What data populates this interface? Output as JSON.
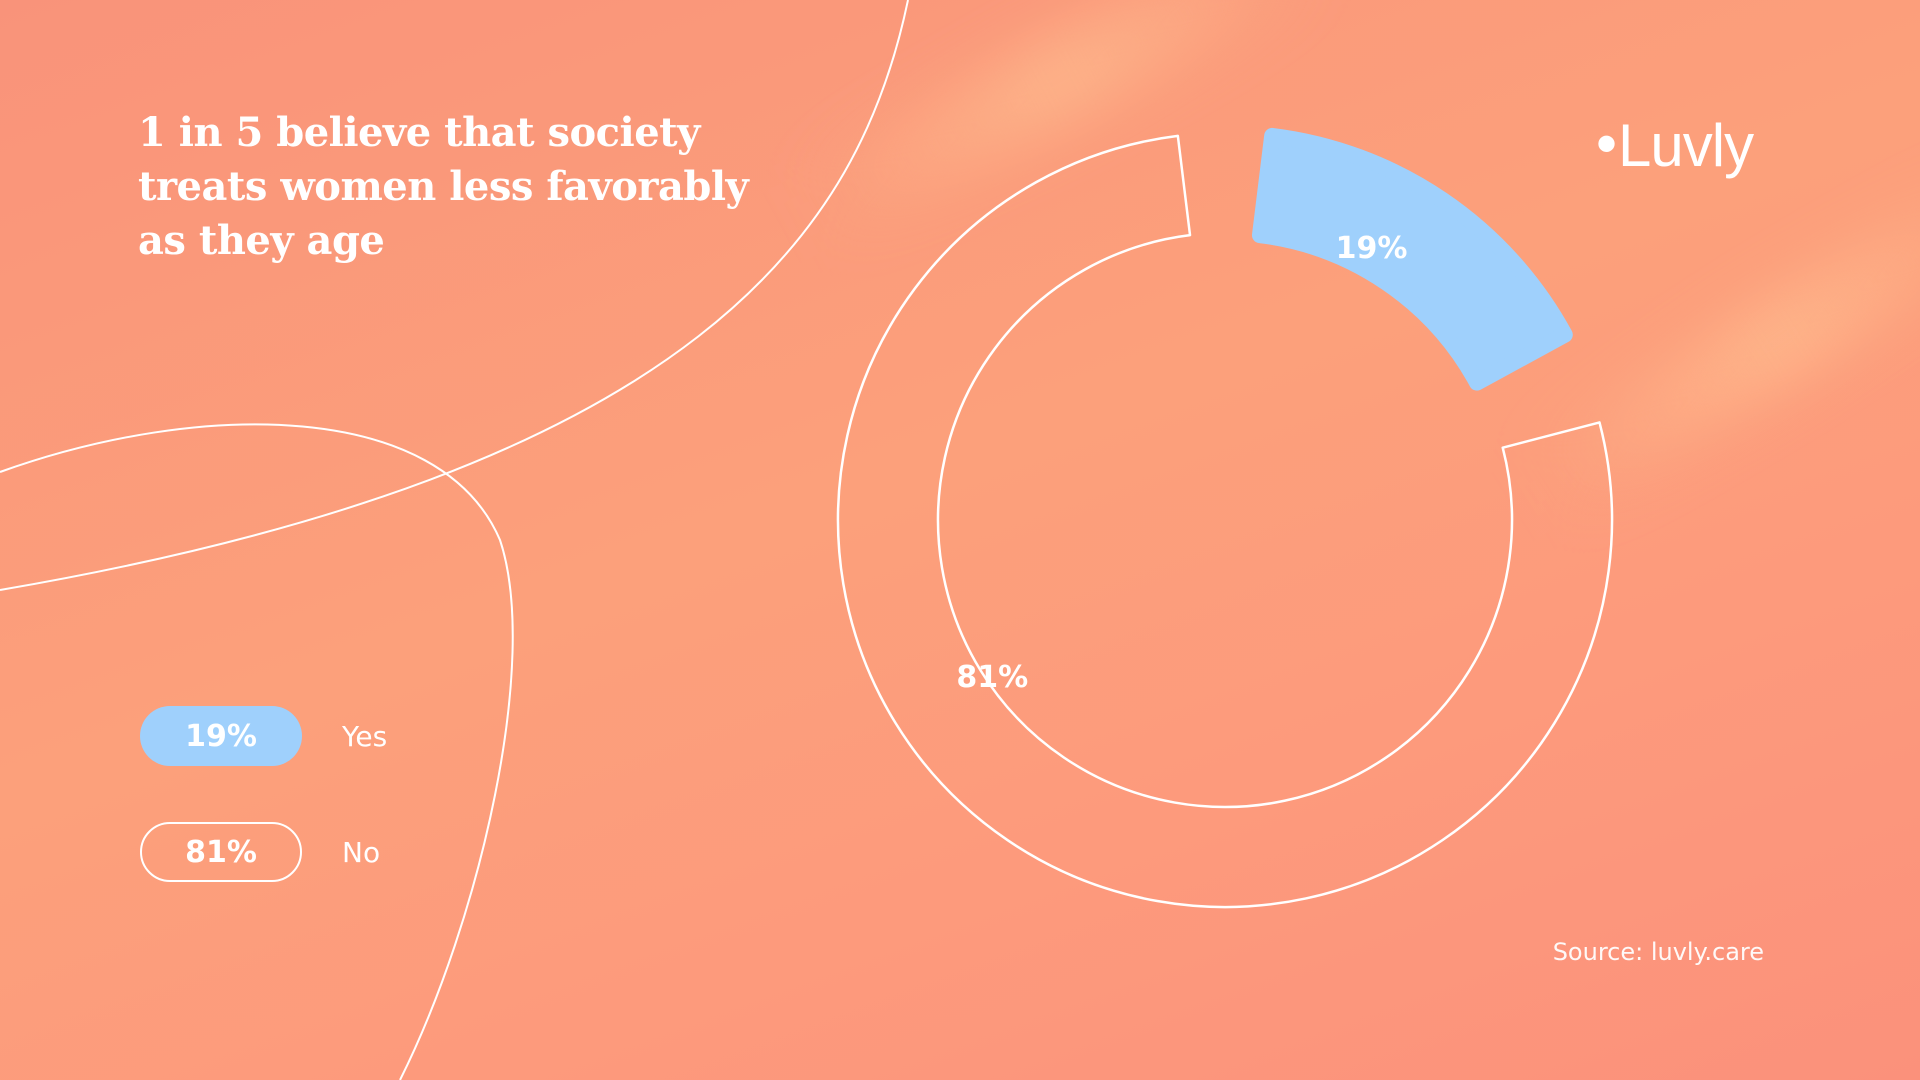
{
  "title": "1 in 5 believe that society treats women less favorably as they age",
  "brand": {
    "name": "Luvly",
    "dot": "•"
  },
  "source": "Source: luvly.care",
  "legend": [
    {
      "value_label": "19%",
      "label": "Yes",
      "style": "filled"
    },
    {
      "value_label": "81%",
      "label": "No",
      "style": "outline"
    }
  ],
  "colors": {
    "yes": "#9fd0fc",
    "no_stroke": "#ffffff",
    "background": "#fca07b",
    "text": "#ffffff"
  },
  "chart_data": {
    "type": "pie",
    "variant": "donut",
    "title": "1 in 5 believe that society treats women less favorably as they age",
    "slices": [
      {
        "name": "Yes",
        "value": 19,
        "label": "19%",
        "color": "#9fd0fc",
        "filled": true
      },
      {
        "name": "No",
        "value": 81,
        "label": "81%",
        "color": "#ffffff",
        "filled": false
      }
    ]
  }
}
